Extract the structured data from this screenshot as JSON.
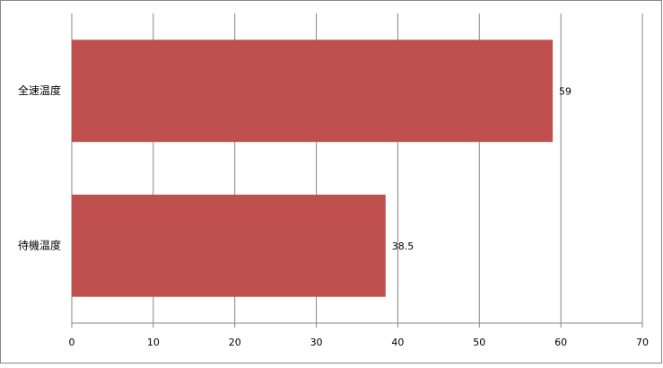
{
  "chart_data": {
    "type": "bar",
    "orientation": "horizontal",
    "categories": [
      "全速温度",
      "待機温度"
    ],
    "values": [
      59,
      38.5
    ],
    "color": "#c0504d",
    "xlim": [
      0,
      70
    ],
    "xticks": [
      0,
      10,
      20,
      30,
      40,
      50,
      60,
      70
    ],
    "grid": true
  }
}
